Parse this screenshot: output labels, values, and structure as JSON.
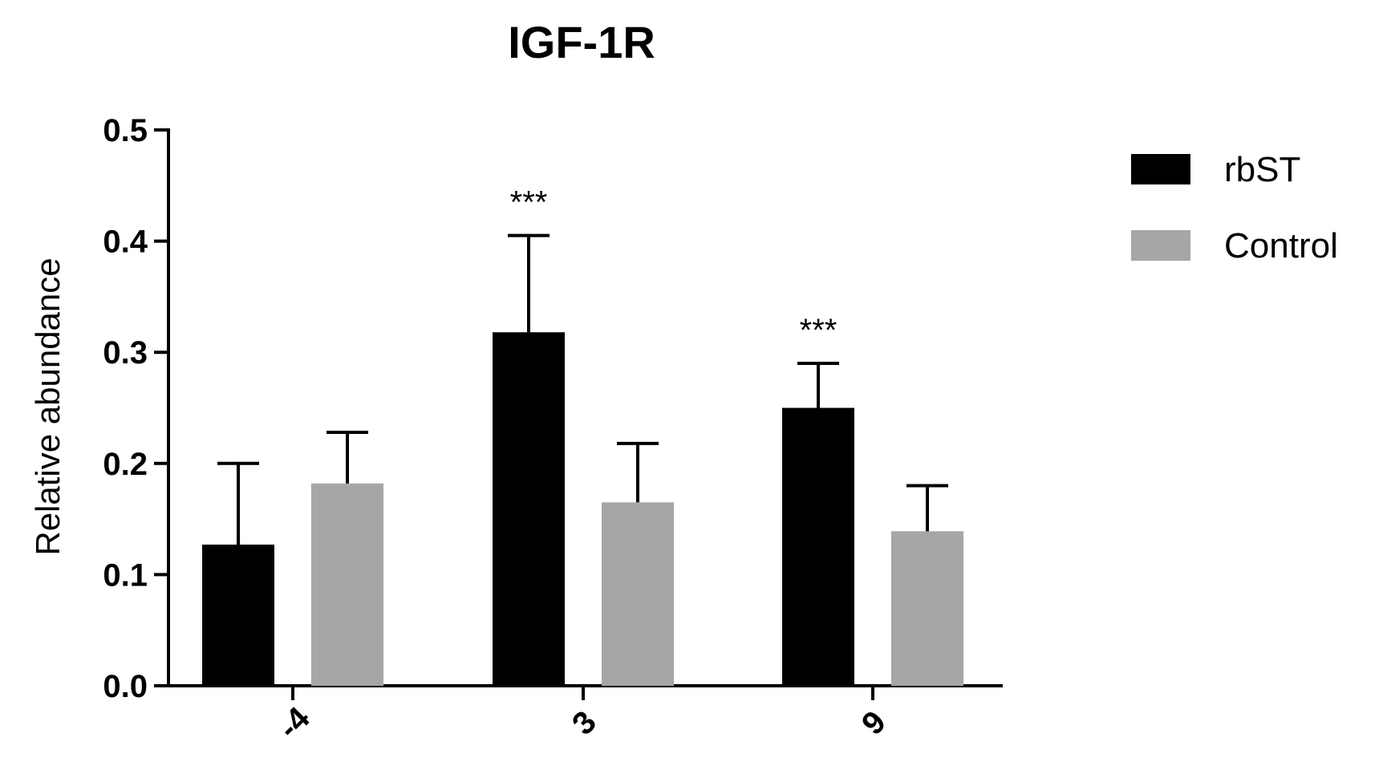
{
  "chart_data": {
    "type": "bar",
    "title": "IGF-1R",
    "ylabel": "Relative abundance",
    "xlabel": "",
    "categories": [
      "-4",
      "3",
      "9"
    ],
    "ylim": [
      0.0,
      0.5
    ],
    "yticks": [
      "0.0",
      "0.1",
      "0.2",
      "0.3",
      "0.4",
      "0.5"
    ],
    "legend_position": "top-right",
    "grid": false,
    "series": [
      {
        "name": "rbST",
        "color": "#000000",
        "values": [
          0.127,
          0.318,
          0.25
        ],
        "error": [
          0.073,
          0.087,
          0.04
        ]
      },
      {
        "name": "Control",
        "color": "#a6a6a9",
        "values": [
          0.182,
          0.165,
          0.139
        ],
        "error": [
          0.046,
          0.053,
          0.041
        ]
      }
    ],
    "annotations": [
      {
        "text": "***",
        "category": "3",
        "series": "rbST"
      },
      {
        "text": "***",
        "category": "9",
        "series": "rbST"
      }
    ]
  }
}
